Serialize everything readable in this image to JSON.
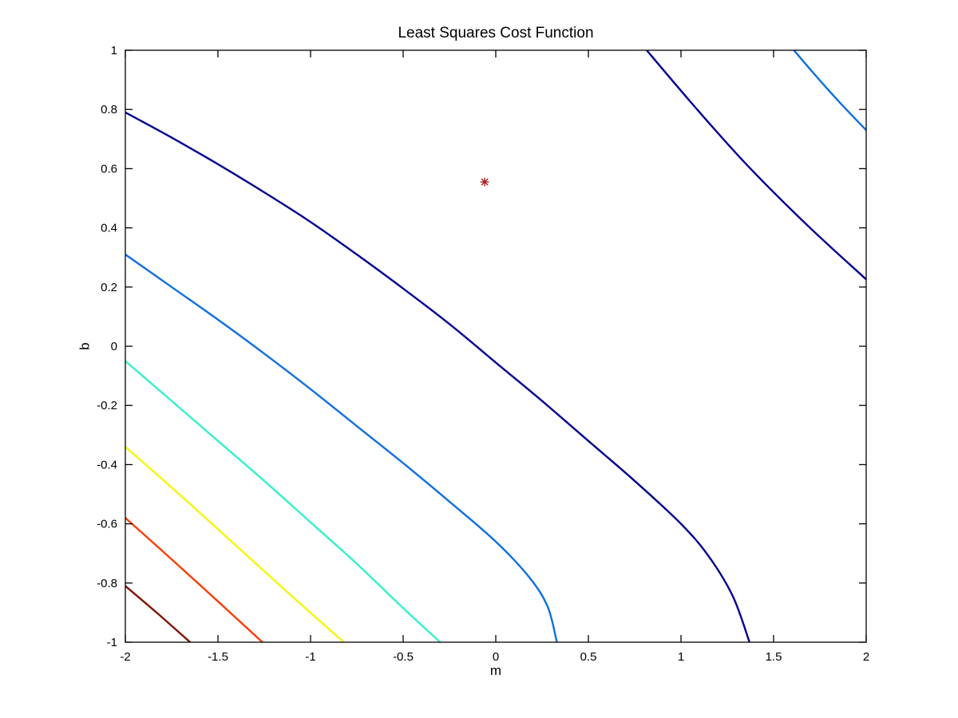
{
  "window": {
    "background": "#ffffff",
    "axes_color": "#000000"
  },
  "chart_data": {
    "type": "contour",
    "title": "Least Squares Cost Function",
    "xlabel": "m",
    "ylabel": "b",
    "xlim": [
      -2,
      2
    ],
    "ylim": [
      -1,
      1
    ],
    "grid": false,
    "legend": "none",
    "x_ticks": [
      -2,
      -1.5,
      -1,
      -0.5,
      0,
      0.5,
      1,
      1.5,
      2
    ],
    "x_tick_labels": [
      "-2",
      "-1.5",
      "-1",
      "-0.5",
      "0",
      "0.5",
      "1",
      "1.5",
      "2"
    ],
    "y_ticks": [
      -1,
      -0.8,
      -0.6,
      -0.4,
      -0.2,
      0,
      0.2,
      0.4,
      0.6,
      0.8,
      1
    ],
    "y_tick_labels": [
      "-1",
      "-0.8",
      "-0.6",
      "-0.4",
      "-0.2",
      "0",
      "0.2",
      "0.4",
      "0.6",
      "0.8",
      "1"
    ],
    "minimum_marker": {
      "m": -0.06,
      "b": 0.555,
      "symbol": "*",
      "color": "#aa2020"
    },
    "contours": [
      {
        "name": "darkred",
        "color": "#7e1400",
        "points": [
          [
            -2.0,
            -0.81
          ],
          [
            -1.82,
            -0.906
          ],
          [
            -1.65,
            -1.0
          ]
        ]
      },
      {
        "name": "orange",
        "color": "#fa3c00",
        "points": [
          [
            -2.0,
            -0.58
          ],
          [
            -1.75,
            -0.72
          ],
          [
            -1.5,
            -0.862
          ],
          [
            -1.26,
            -1.0
          ]
        ]
      },
      {
        "name": "yellow",
        "color": "#f6f600",
        "points": [
          [
            -2.0,
            -0.34
          ],
          [
            -1.7,
            -0.505
          ],
          [
            -1.4,
            -0.675
          ],
          [
            -1.1,
            -0.845
          ],
          [
            -0.82,
            -1.0
          ]
        ]
      },
      {
        "name": "cyan",
        "color": "#36f0cd",
        "points": [
          [
            -2.0,
            -0.05
          ],
          [
            -1.75,
            -0.185
          ],
          [
            -1.5,
            -0.32
          ],
          [
            -1.25,
            -0.455
          ],
          [
            -1.0,
            -0.595
          ],
          [
            -0.75,
            -0.735
          ],
          [
            -0.5,
            -0.885
          ],
          [
            -0.3,
            -1.0
          ]
        ]
      },
      {
        "name": "blue-lower",
        "color": "#0f6fe0",
        "points": [
          [
            -2.0,
            0.31
          ],
          [
            -1.75,
            0.2
          ],
          [
            -1.5,
            0.09
          ],
          [
            -1.25,
            -0.025
          ],
          [
            -1.0,
            -0.145
          ],
          [
            -0.75,
            -0.27
          ],
          [
            -0.5,
            -0.395
          ],
          [
            -0.25,
            -0.525
          ],
          [
            0.0,
            -0.66
          ],
          [
            0.18,
            -0.78
          ],
          [
            0.28,
            -0.88
          ],
          [
            0.33,
            -1.0
          ]
        ]
      },
      {
        "name": "blue-upper",
        "color": "#0f6fe0",
        "points": [
          [
            1.61,
            1.0
          ],
          [
            1.74,
            0.905
          ],
          [
            1.87,
            0.815
          ],
          [
            2.0,
            0.73
          ]
        ]
      },
      {
        "name": "navy-lower",
        "color": "#000090",
        "points": [
          [
            -2.0,
            0.79
          ],
          [
            -1.75,
            0.705
          ],
          [
            -1.5,
            0.615
          ],
          [
            -1.25,
            0.52
          ],
          [
            -1.0,
            0.42
          ],
          [
            -0.75,
            0.31
          ],
          [
            -0.5,
            0.195
          ],
          [
            -0.25,
            0.075
          ],
          [
            0.0,
            -0.055
          ],
          [
            0.25,
            -0.185
          ],
          [
            0.5,
            -0.32
          ],
          [
            0.75,
            -0.455
          ],
          [
            1.0,
            -0.6
          ],
          [
            1.15,
            -0.71
          ],
          [
            1.28,
            -0.845
          ],
          [
            1.37,
            -1.0
          ]
        ]
      },
      {
        "name": "navy-upper",
        "color": "#000090",
        "points": [
          [
            0.815,
            1.0
          ],
          [
            1.08,
            0.805
          ],
          [
            1.36,
            0.61
          ],
          [
            1.68,
            0.41
          ],
          [
            2.0,
            0.226
          ]
        ]
      }
    ]
  }
}
